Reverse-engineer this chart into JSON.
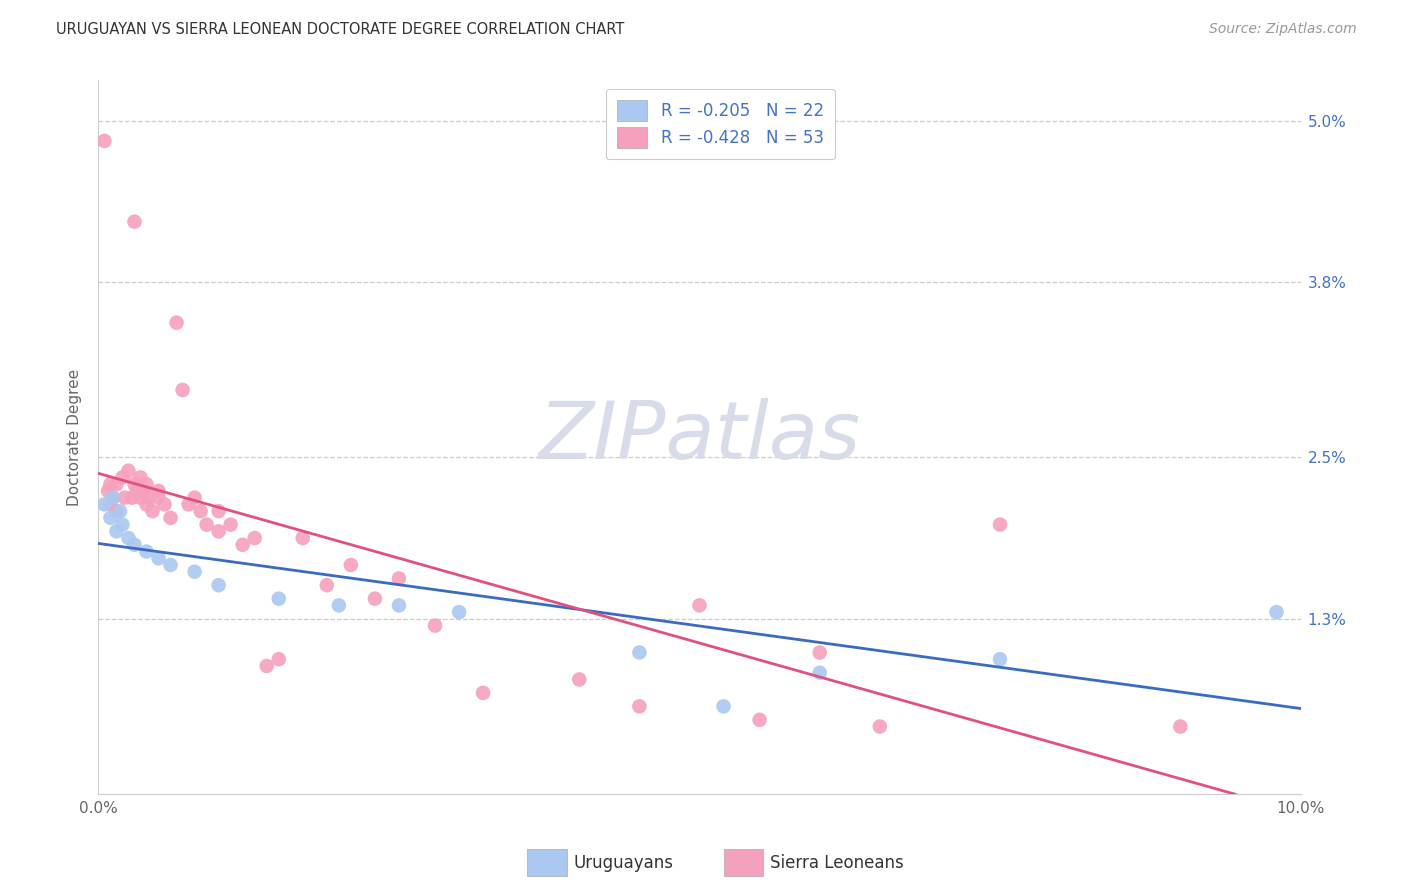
{
  "title": "URUGUAYAN VS SIERRA LEONEAN DOCTORATE DEGREE CORRELATION CHART",
  "source": "Source: ZipAtlas.com",
  "ylabel": "Doctorate Degree",
  "xlim": [
    0.0,
    10.0
  ],
  "ylim": [
    0.0,
    5.3
  ],
  "yticks": [
    1.3,
    2.5,
    3.8,
    5.0
  ],
  "ytick_labels": [
    "1.3%",
    "2.5%",
    "3.8%",
    "5.0%"
  ],
  "legend_uruguayans": "Uruguayans",
  "legend_sierra_leoneans": "Sierra Leoneans",
  "r_uruguayan": -0.205,
  "n_uruguayan": 22,
  "r_sierra_leonean": -0.428,
  "n_sierra_leonean": 53,
  "uruguayan_color": "#aac8f0",
  "sierra_leonean_color": "#f5a0bc",
  "uruguayan_line_color": "#3a6bbf",
  "sierra_leonean_line_color": "#e05080",
  "right_axis_color": "#4472c4",
  "legend_text_color": "#4472c4",
  "watermark_color": "#d8dce8",
  "uruguayan_x": [
    0.05,
    0.1,
    0.12,
    0.15,
    0.18,
    0.2,
    0.25,
    0.3,
    0.4,
    0.5,
    0.6,
    0.8,
    1.0,
    1.5,
    2.0,
    2.5,
    3.0,
    4.5,
    5.2,
    6.0,
    7.5,
    9.8
  ],
  "uruguayan_y": [
    2.15,
    2.05,
    2.2,
    1.95,
    2.1,
    2.0,
    1.9,
    1.85,
    1.8,
    1.75,
    1.7,
    1.65,
    1.55,
    1.45,
    1.4,
    1.4,
    1.35,
    1.05,
    0.65,
    0.9,
    1.0,
    1.35
  ],
  "sierra_leonean_x": [
    0.05,
    0.08,
    0.1,
    0.1,
    0.12,
    0.15,
    0.15,
    0.2,
    0.22,
    0.25,
    0.28,
    0.3,
    0.3,
    0.32,
    0.35,
    0.35,
    0.38,
    0.4,
    0.4,
    0.42,
    0.45,
    0.5,
    0.5,
    0.55,
    0.6,
    0.65,
    0.7,
    0.75,
    0.8,
    0.85,
    0.9,
    1.0,
    1.0,
    1.1,
    1.2,
    1.3,
    1.4,
    1.5,
    1.7,
    1.9,
    2.1,
    2.3,
    2.5,
    2.8,
    3.2,
    4.0,
    4.5,
    5.0,
    5.5,
    6.0,
    6.5,
    7.5,
    9.0
  ],
  "sierra_leonean_y": [
    4.85,
    2.25,
    2.3,
    2.15,
    2.2,
    2.3,
    2.1,
    2.35,
    2.2,
    2.4,
    2.2,
    4.25,
    2.3,
    2.25,
    2.35,
    2.2,
    2.25,
    2.3,
    2.15,
    2.2,
    2.1,
    2.2,
    2.25,
    2.15,
    2.05,
    3.5,
    3.0,
    2.15,
    2.2,
    2.1,
    2.0,
    2.1,
    1.95,
    2.0,
    1.85,
    1.9,
    0.95,
    1.0,
    1.9,
    1.55,
    1.7,
    1.45,
    1.6,
    1.25,
    0.75,
    0.85,
    0.65,
    1.4,
    0.55,
    1.05,
    0.5,
    2.0,
    0.5
  ]
}
